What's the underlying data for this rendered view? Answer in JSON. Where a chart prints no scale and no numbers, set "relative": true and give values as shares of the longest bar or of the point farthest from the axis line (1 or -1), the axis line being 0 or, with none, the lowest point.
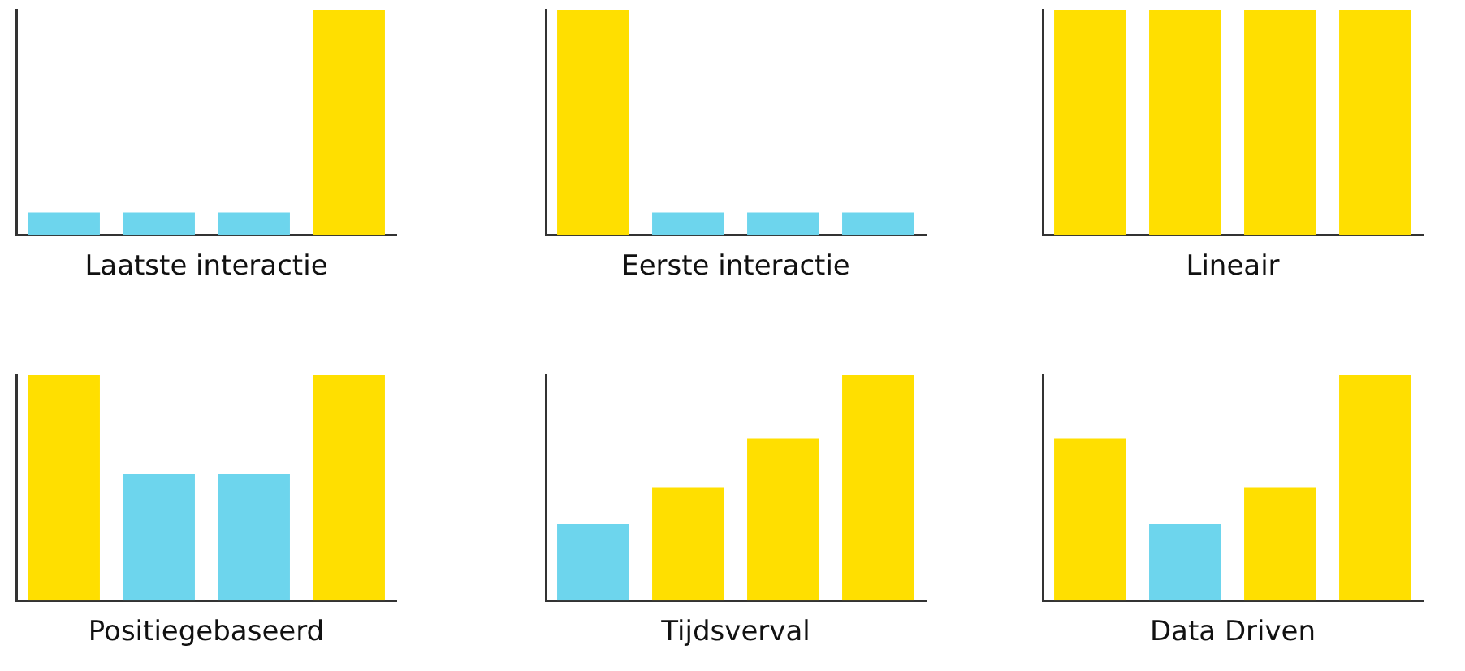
{
  "chart_data": [
    {
      "type": "bar",
      "relative": true,
      "xlabel": "Laatste interactie",
      "categories": [
        null,
        null,
        null,
        null
      ],
      "values": [
        0.1,
        0.1,
        0.1,
        1
      ],
      "colors": [
        "#6dd5ed",
        "#6dd5ed",
        "#6dd5ed",
        "#ffdf00"
      ]
    },
    {
      "type": "bar",
      "relative": true,
      "xlabel": "Eerste interactie",
      "categories": [
        null,
        null,
        null,
        null
      ],
      "values": [
        1,
        0.1,
        0.1,
        0.1
      ],
      "colors": [
        "#ffdf00",
        "#6dd5ed",
        "#6dd5ed",
        "#6dd5ed"
      ]
    },
    {
      "type": "bar",
      "relative": true,
      "xlabel": "Lineair",
      "categories": [
        null,
        null,
        null,
        null
      ],
      "values": [
        1,
        1,
        1,
        1
      ],
      "colors": [
        "#ffdf00",
        "#ffdf00",
        "#ffdf00",
        "#ffdf00"
      ]
    },
    {
      "type": "bar",
      "relative": true,
      "xlabel": "Positiegebaseerd",
      "categories": [
        null,
        null,
        null,
        null
      ],
      "values": [
        1,
        0.56,
        0.56,
        1
      ],
      "colors": [
        "#ffdf00",
        "#6dd5ed",
        "#6dd5ed",
        "#ffdf00"
      ]
    },
    {
      "type": "bar",
      "relative": true,
      "xlabel": "Tijdsverval",
      "categories": [
        null,
        null,
        null,
        null
      ],
      "values": [
        0.34,
        0.5,
        0.72,
        1
      ],
      "colors": [
        "#6dd5ed",
        "#ffdf00",
        "#ffdf00",
        "#ffdf00"
      ]
    },
    {
      "type": "bar",
      "relative": true,
      "xlabel": "Data Driven",
      "categories": [
        null,
        null,
        null,
        null
      ],
      "values": [
        0.72,
        0.34,
        0.5,
        1
      ],
      "colors": [
        "#ffdf00",
        "#6dd5ed",
        "#ffdf00",
        "#ffdf00"
      ]
    }
  ]
}
